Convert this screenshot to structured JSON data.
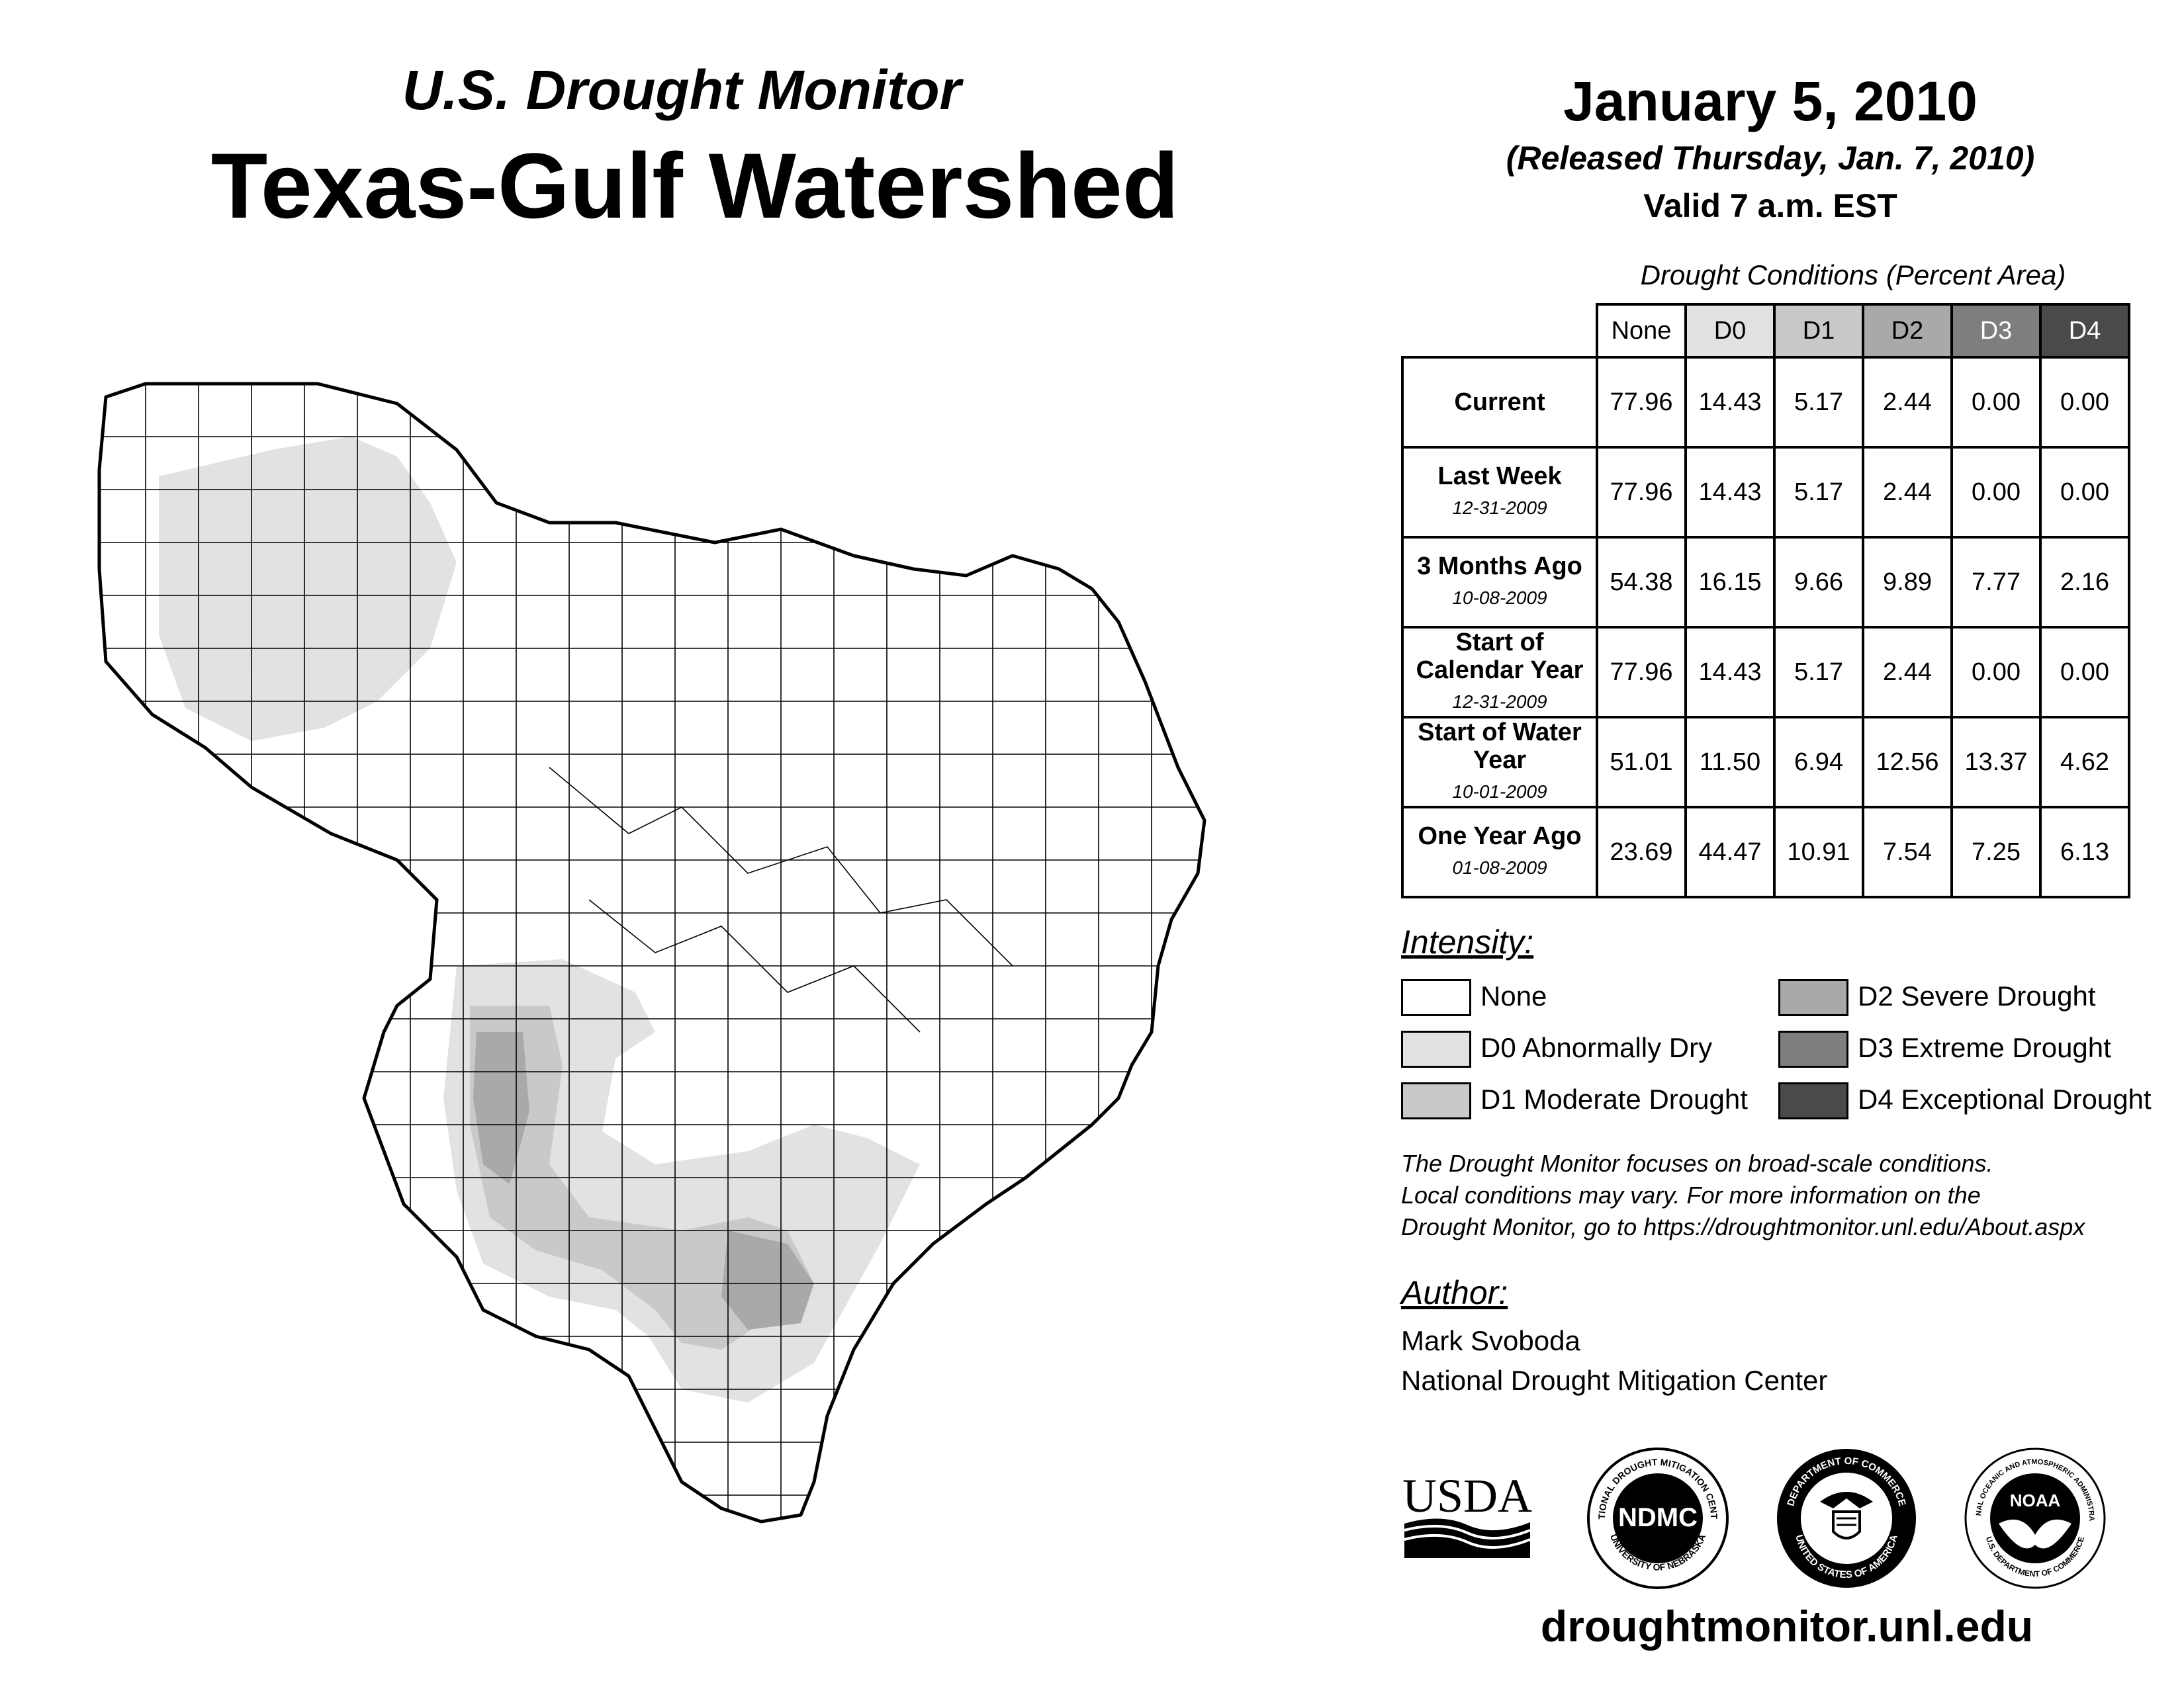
{
  "header": {
    "title_small": "U.S. Drought Monitor",
    "title_big": "Texas-Gulf Watershed",
    "date": "January 5, 2010",
    "released": "(Released Thursday, Jan. 7, 2010)",
    "valid": "Valid 7 a.m. EST"
  },
  "table": {
    "caption": "Drought Conditions (Percent Area)",
    "columns": [
      "None",
      "D0",
      "D1",
      "D2",
      "D3",
      "D4"
    ],
    "rows": [
      {
        "label": "Current",
        "date": "",
        "values": [
          "77.96",
          "14.43",
          "5.17",
          "2.44",
          "0.00",
          "0.00"
        ]
      },
      {
        "label": "Last Week",
        "date": "12-31-2009",
        "values": [
          "77.96",
          "14.43",
          "5.17",
          "2.44",
          "0.00",
          "0.00"
        ]
      },
      {
        "label": "3 Months Ago",
        "date": "10-08-2009",
        "values": [
          "54.38",
          "16.15",
          "9.66",
          "9.89",
          "7.77",
          "2.16"
        ]
      },
      {
        "label": "Start of Calendar Year",
        "date": "12-31-2009",
        "values": [
          "77.96",
          "14.43",
          "5.17",
          "2.44",
          "0.00",
          "0.00"
        ]
      },
      {
        "label": "Start of Water Year",
        "date": "10-01-2009",
        "values": [
          "51.01",
          "11.50",
          "6.94",
          "12.56",
          "13.37",
          "4.62"
        ]
      },
      {
        "label": "One Year Ago",
        "date": "01-08-2009",
        "values": [
          "23.69",
          "44.47",
          "10.91",
          "7.54",
          "7.25",
          "6.13"
        ]
      }
    ]
  },
  "legend": {
    "title": "Intensity:",
    "items": [
      {
        "label": "None",
        "color": "#ffffff"
      },
      {
        "label": "D0 Abnormally Dry",
        "color": "#e2e2e2"
      },
      {
        "label": "D1 Moderate Drought",
        "color": "#c9c9c9"
      },
      {
        "label": "D2 Severe Drought",
        "color": "#a9a9a9"
      },
      {
        "label": "D3 Extreme Drought",
        "color": "#7e7e7e"
      },
      {
        "label": "D4 Exceptional Drought",
        "color": "#4a4a4a"
      }
    ]
  },
  "note": {
    "line1": "The Drought Monitor focuses on broad-scale conditions.",
    "line2": "Local conditions may vary. For more information on the",
    "line3": "Drought Monitor, go to https://droughtmonitor.unl.edu/About.aspx"
  },
  "author": {
    "title": "Author:",
    "name": "Mark Svoboda",
    "org": "National Drought Mitigation Center"
  },
  "logos": {
    "usda": "USDA",
    "ndmc": "NDMC",
    "ndmc_ring_top": "NATIONAL DROUGHT MITIGATION CENTER",
    "ndmc_ring_bottom": "UNIVERSITY OF NEBRASKA",
    "doc_ring_top": "DEPARTMENT OF COMMERCE",
    "doc_ring_bottom": "UNITED STATES OF AMERICA",
    "noaa": "NOAA",
    "noaa_ring_top": "NATIONAL OCEANIC AND ATMOSPHERIC ADMINISTRATION",
    "noaa_ring_bottom": "U.S. DEPARTMENT OF COMMERCE"
  },
  "footer": {
    "url": "droughtmonitor.unl.edu"
  }
}
